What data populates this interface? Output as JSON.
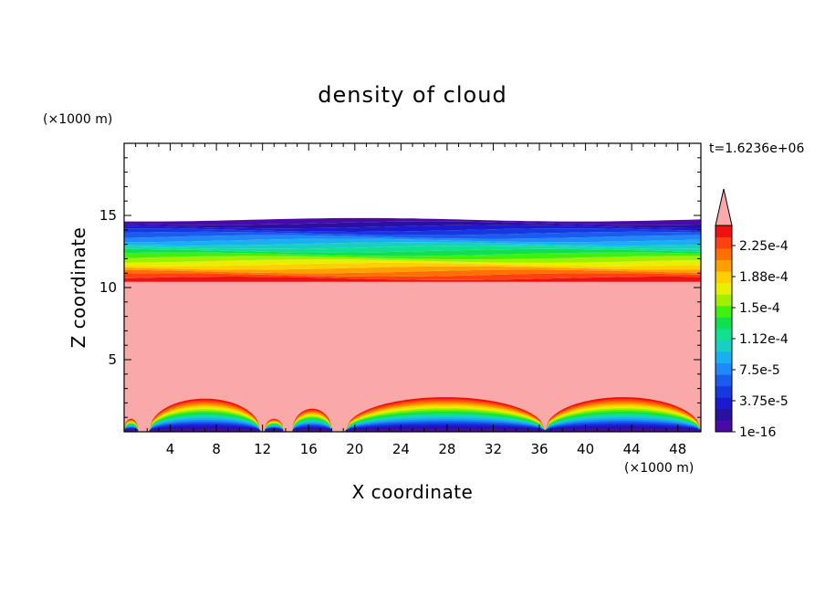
{
  "chart_data": {
    "type": "heatmap",
    "title": "density of cloud",
    "xlabel": "X coordinate",
    "ylabel": "Z coordinate",
    "x_unit": "(×1000 m)",
    "y_unit": "(×1000 m)",
    "time_label": "t=1.6236e+06",
    "xlim": [
      0,
      50
    ],
    "ylim": [
      0,
      20
    ],
    "x_ticks": [
      "4",
      "8",
      "12",
      "16",
      "20",
      "24",
      "28",
      "32",
      "36",
      "40",
      "44",
      "48"
    ],
    "y_ticks": [
      "5",
      "10",
      "15"
    ],
    "colorbar": {
      "labels": [
        "2.25e-4",
        "1.88e-4",
        "1.5e-4",
        "1.12e-4",
        "7.5e-5",
        "3.75e-5",
        "1e-16"
      ],
      "overflow_color": "#f9a9a8",
      "colors": [
        "#4a0aa8",
        "#2a10a0",
        "#1a1ad0",
        "#1638e0",
        "#1a5cf0",
        "#2088f8",
        "#18b0f0",
        "#18d0c0",
        "#10e090",
        "#10e050",
        "#40f010",
        "#a0f000",
        "#e8f000",
        "#ffd000",
        "#ffa000",
        "#ff7000",
        "#ff4010",
        "#f01010"
      ]
    },
    "fields": {
      "upper_band_base_z": 10.4,
      "upper_band_top_z": 14.7,
      "surface_layer": [
        {
          "x_start": 0,
          "x_end": 1.2,
          "peak_z": 0.8
        },
        {
          "x_start": 2.2,
          "x_end": 11.8,
          "peak_z": 2.2
        },
        {
          "x_start": 12.2,
          "x_end": 13.8,
          "peak_z": 0.8
        },
        {
          "x_start": 14.6,
          "x_end": 18.0,
          "peak_z": 1.5
        },
        {
          "x_start": 19.2,
          "x_end": 36.5,
          "peak_z": 2.3
        },
        {
          "x_start": 36.5,
          "x_end": 50,
          "peak_z": 2.3
        }
      ]
    }
  }
}
